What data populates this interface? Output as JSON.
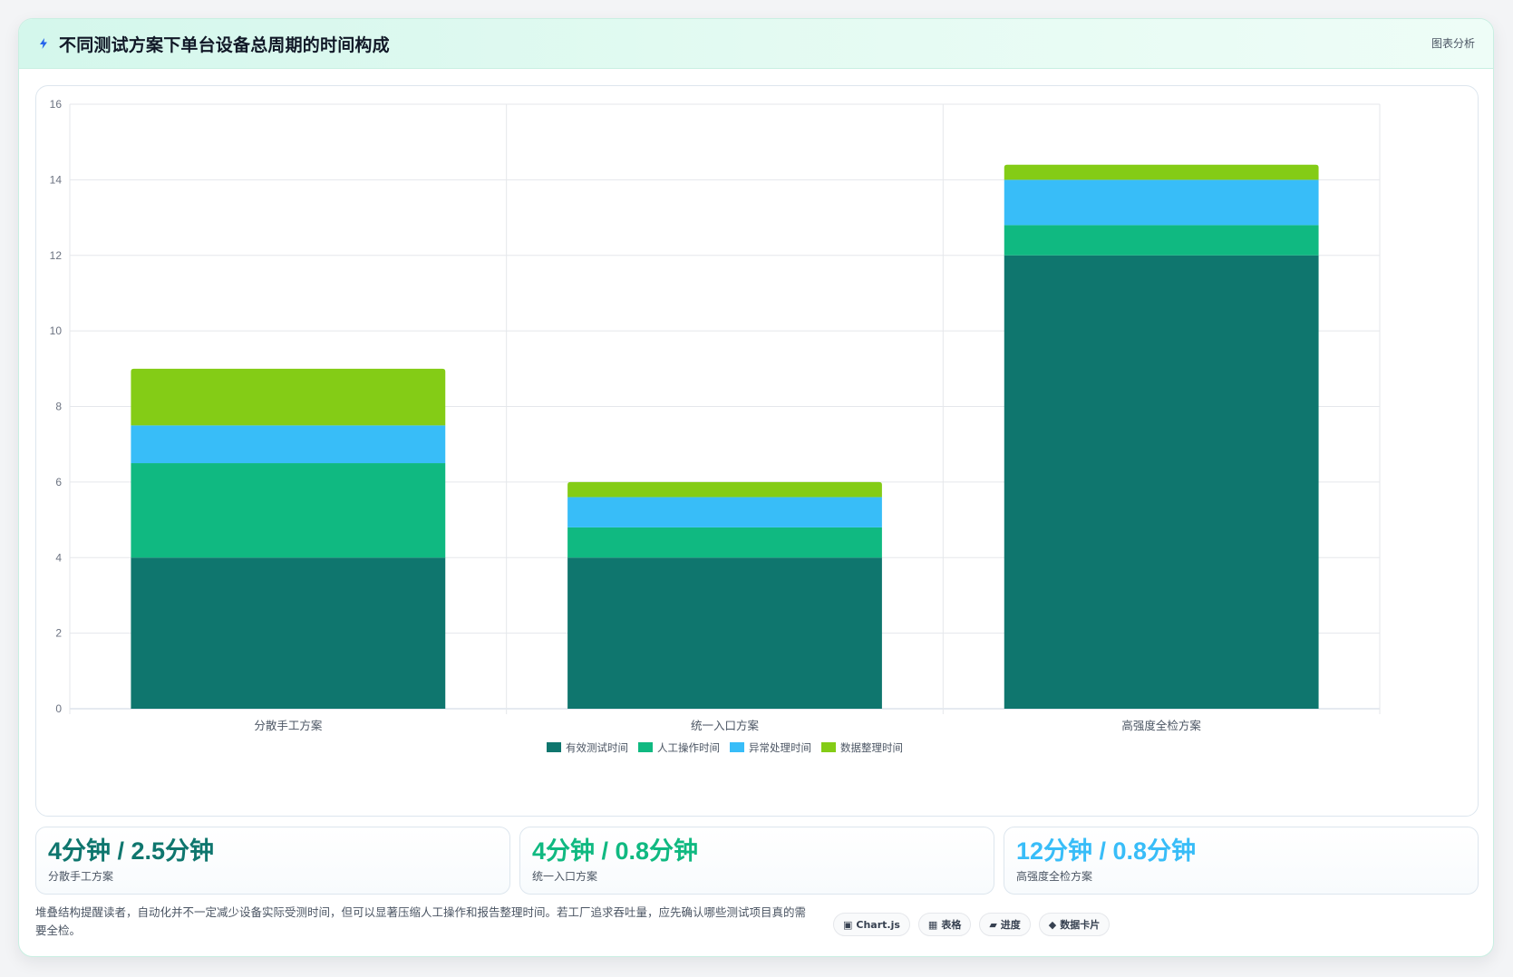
{
  "header": {
    "title": "不同测试方案下单台设备总周期的时间构成",
    "tag": "图表分析"
  },
  "chart_data": {
    "type": "bar",
    "stacked": true,
    "categories": [
      "分散手工方案",
      "统一入口方案",
      "高强度全检方案"
    ],
    "series": [
      {
        "name": "有效测试时间",
        "values": [
          4,
          4,
          12
        ],
        "color": "#0f766e"
      },
      {
        "name": "人工操作时间",
        "values": [
          2.5,
          0.8,
          0.8
        ],
        "color": "#10b981"
      },
      {
        "name": "异常处理时间",
        "values": [
          1,
          0.8,
          1.2
        ],
        "color": "#38bdf8"
      },
      {
        "name": "数据整理时间",
        "values": [
          1.5,
          0.4,
          0.4
        ],
        "color": "#84cc16"
      }
    ],
    "ylim": [
      0,
      16
    ],
    "yticks": [
      0,
      2,
      4,
      6,
      8,
      10,
      12,
      14,
      16
    ],
    "grid": true,
    "legend": "bottom-center"
  },
  "stats": [
    {
      "value": "4分钟 / 2.5分钟",
      "label": "分散手工方案",
      "color": "#0f766e"
    },
    {
      "value": "4分钟 / 0.8分钟",
      "label": "统一入口方案",
      "color": "#10b981"
    },
    {
      "value": "12分钟 / 0.8分钟",
      "label": "高强度全检方案",
      "color": "#38bdf8"
    }
  ],
  "footer": {
    "note": "堆叠结构提醒读者，自动化并不一定减少设备实际受测时间，但可以显著压缩人工操作和报告整理时间。若工厂追求吞吐量，应先确认哪些测试项目真的需要全检。",
    "chips": [
      {
        "glyph": "▣",
        "label": "Chart.js"
      },
      {
        "glyph": "▦",
        "label": "表格"
      },
      {
        "glyph": "▰",
        "label": "进度"
      },
      {
        "glyph": "◆",
        "label": "数据卡片"
      }
    ]
  }
}
